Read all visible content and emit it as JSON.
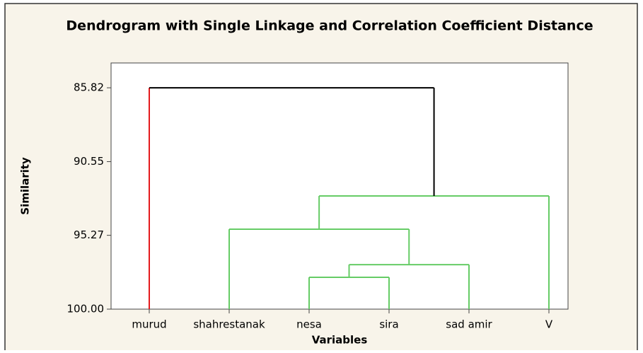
{
  "chart_data": {
    "type": "dendrogram",
    "title": "Dendrogram with Single Linkage and Correlation Coefficient Distance",
    "x_label": "Variables",
    "y_label": "Similarity",
    "categories": [
      "murud",
      "shahrestanak",
      "nesa",
      "sira",
      "sad amir",
      "V"
    ],
    "leaf_colors": [
      "#e41a1c",
      "#66cc66",
      "#66cc66",
      "#66cc66",
      "#66cc66",
      "#66cc66"
    ],
    "merges": [
      {
        "join": [
          2,
          3
        ],
        "height": 97.96,
        "color": "#66cc66"
      },
      {
        "join": [
          6,
          4
        ],
        "height": 97.15,
        "color": "#66cc66"
      },
      {
        "join": [
          1,
          7
        ],
        "height": 94.88,
        "color": "#66cc66"
      },
      {
        "join": [
          8,
          5
        ],
        "height": 92.75,
        "color": "#66cc66"
      },
      {
        "join": [
          0,
          9
        ],
        "height": 85.82,
        "color": "#000000"
      }
    ],
    "ylim": [
      100.0,
      84.23
    ],
    "yticks": [
      85.82,
      90.55,
      95.27,
      {
        "value": 100,
        "label": "100.00"
      }
    ]
  }
}
